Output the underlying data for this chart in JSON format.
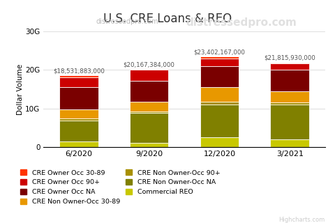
{
  "title": "U.S. CRE Loans & REO",
  "subtitle_small": "distressedpro.com",
  "subtitle_large": "distressedpro.com",
  "watermark": "Highcharts.com",
  "categories": [
    "6/2020",
    "9/2020",
    "12/2020",
    "3/2021"
  ],
  "totals_labels": [
    "$18,531,883,000",
    "$20,167,384,000",
    "$23,402,167,000",
    "$21,815,930,000"
  ],
  "totals_vals": [
    18531883000,
    20167384000,
    23402167000,
    21815930000
  ],
  "ylabel": "Dollar Volume",
  "ylim": [
    0,
    30000000000
  ],
  "yticks": [
    0,
    10000000000,
    20000000000,
    30000000000
  ],
  "ytick_labels": [
    "0",
    "10G",
    "20G",
    "30G"
  ],
  "series": [
    {
      "name": "Commercial REO",
      "color": "#c8c800",
      "values": [
        1400000000,
        1200000000,
        2600000000,
        2100000000
      ]
    },
    {
      "name": "CRE Non Owner-Occ NA",
      "color": "#808000",
      "values": [
        5500000000,
        7600000000,
        8500000000,
        8900000000
      ]
    },
    {
      "name": "CRE Non Owner-Occ 90+",
      "color": "#a89000",
      "values": [
        600000000,
        400000000,
        600000000,
        500000000
      ]
    },
    {
      "name": "CRE Non Owner-Occ 30-89",
      "color": "#e89800",
      "values": [
        2200000000,
        2500000000,
        3800000000,
        3000000000
      ]
    },
    {
      "name": "CRE Owner Occ NA",
      "color": "#7a0000",
      "values": [
        5900000000,
        5500000000,
        5500000000,
        5600000000
      ]
    },
    {
      "name": "CRE Owner Occ 90+",
      "color": "#cc0000",
      "values": [
        2400000000,
        2800000000,
        2000000000,
        1500000000
      ]
    },
    {
      "name": "CRE Owner Occ 30-89",
      "color": "#ff3300",
      "values": [
        531883000,
        167384000,
        402167000,
        215930000
      ]
    }
  ],
  "legend_order": [
    "CRE Owner Occ 30-89",
    "CRE Owner Occ 90+",
    "CRE Owner Occ NA",
    "CRE Non Owner-Occ 30-89",
    "CRE Non Owner-Occ 90+",
    "CRE Non Owner-Occ NA",
    "Commercial REO"
  ],
  "background_color": "#ffffff",
  "grid_color": "#e0e0e0",
  "title_fontsize": 12,
  "label_fontsize": 7.5
}
